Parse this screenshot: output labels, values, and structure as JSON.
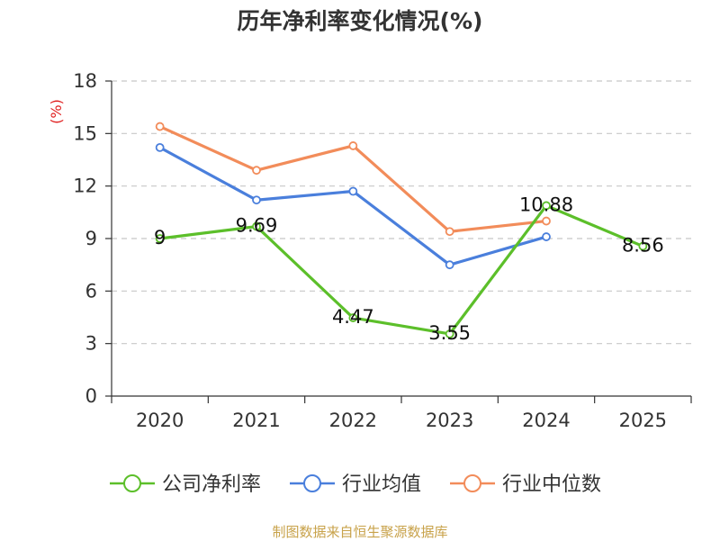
{
  "title": "历年净利率变化情况(%)",
  "footer": "制图数据来自恒生聚源数据库",
  "chart_data": {
    "type": "line",
    "title": "历年净利率变化情况(%)",
    "ylabel": "(%)",
    "xlabel": "",
    "categories": [
      "2020",
      "2021",
      "2022",
      "2023",
      "2024",
      "2025"
    ],
    "ylim": [
      0,
      18
    ],
    "yticks": [
      0,
      3,
      6,
      9,
      12,
      15,
      18
    ],
    "grid": "horizontal-dashed",
    "legend_position": "bottom",
    "series": [
      {
        "name": "公司净利率",
        "color": "#5cbf2a",
        "values": [
          9,
          9.69,
          4.47,
          3.55,
          10.88,
          8.56
        ],
        "labels": [
          "9",
          "9.69",
          "4.47",
          "3.55",
          "10.88",
          "8.56"
        ]
      },
      {
        "name": "行业均值",
        "color": "#4a7fdc",
        "values": [
          14.2,
          11.2,
          11.7,
          7.5,
          9.1,
          null
        ]
      },
      {
        "name": "行业中位数",
        "color": "#f28c5a",
        "values": [
          15.4,
          12.9,
          14.3,
          9.4,
          10.0,
          null
        ]
      }
    ]
  }
}
